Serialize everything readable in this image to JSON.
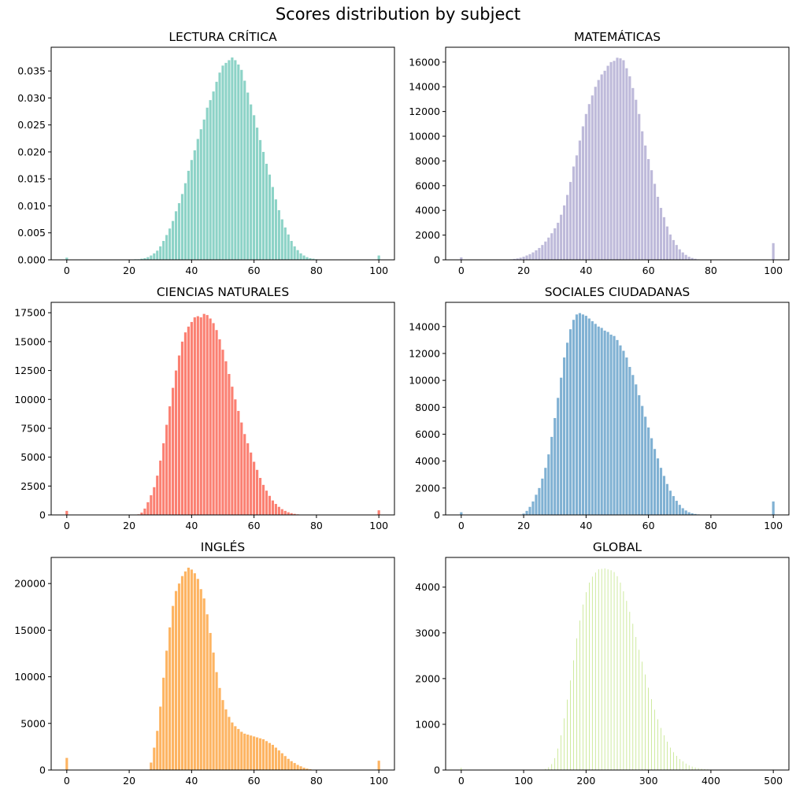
{
  "figure": {
    "suptitle": "Scores distribution by subject"
  },
  "chart_data": [
    {
      "type": "bar",
      "title": "LECTURA CRÍTICA",
      "color": "#8dd3c7",
      "xlim": [
        -5,
        105
      ],
      "ylim": [
        0,
        0.0394
      ],
      "xticks": [
        0,
        20,
        40,
        60,
        80,
        100
      ],
      "yticks": [
        0.0,
        0.005,
        0.01,
        0.015,
        0.02,
        0.025,
        0.03,
        0.035
      ],
      "ytick_labels": [
        "0.000",
        "0.005",
        "0.010",
        "0.015",
        "0.020",
        "0.025",
        "0.030",
        "0.035"
      ],
      "bar_width": 0.8,
      "x": [
        0,
        21,
        22,
        23,
        24,
        25,
        26,
        27,
        28,
        29,
        30,
        31,
        32,
        33,
        34,
        35,
        36,
        37,
        38,
        39,
        40,
        41,
        42,
        43,
        44,
        45,
        46,
        47,
        48,
        49,
        50,
        51,
        52,
        53,
        54,
        55,
        56,
        57,
        58,
        59,
        60,
        61,
        62,
        63,
        64,
        65,
        66,
        67,
        68,
        69,
        70,
        71,
        72,
        73,
        74,
        75,
        76,
        77,
        78,
        79,
        80,
        81,
        82,
        100
      ],
      "values": [
        0.0004,
        0.0,
        0.0001,
        0.0001,
        0.0002,
        0.0003,
        0.0005,
        0.0008,
        0.0012,
        0.0017,
        0.0025,
        0.0035,
        0.0046,
        0.0058,
        0.0072,
        0.009,
        0.0105,
        0.0122,
        0.0142,
        0.0165,
        0.0185,
        0.0203,
        0.0224,
        0.0242,
        0.026,
        0.0282,
        0.0296,
        0.0312,
        0.033,
        0.0347,
        0.036,
        0.0365,
        0.037,
        0.0375,
        0.037,
        0.0362,
        0.0352,
        0.0332,
        0.031,
        0.0288,
        0.0268,
        0.0245,
        0.0222,
        0.02,
        0.0178,
        0.0158,
        0.0135,
        0.0112,
        0.0092,
        0.0075,
        0.006,
        0.0047,
        0.0035,
        0.0025,
        0.0018,
        0.0012,
        0.0008,
        0.0005,
        0.0003,
        0.0002,
        0.0001,
        0.0,
        0.0,
        0.0008
      ]
    },
    {
      "type": "bar",
      "title": "MATEMÁTICAS",
      "color": "#bebada",
      "xlim": [
        -5,
        105
      ],
      "ylim": [
        0,
        17200
      ],
      "xticks": [
        0,
        20,
        40,
        60,
        80,
        100
      ],
      "yticks": [
        0,
        2000,
        4000,
        6000,
        8000,
        10000,
        12000,
        14000,
        16000
      ],
      "ytick_labels": [
        "0",
        "2000",
        "4000",
        "6000",
        "8000",
        "10000",
        "12000",
        "14000",
        "16000"
      ],
      "bar_width": 0.8,
      "x": [
        0,
        15,
        16,
        17,
        18,
        19,
        20,
        21,
        22,
        23,
        24,
        25,
        26,
        27,
        28,
        29,
        30,
        31,
        32,
        33,
        34,
        35,
        36,
        37,
        38,
        39,
        40,
        41,
        42,
        43,
        44,
        45,
        46,
        47,
        48,
        49,
        50,
        51,
        52,
        53,
        54,
        55,
        56,
        57,
        58,
        59,
        60,
        61,
        62,
        63,
        64,
        65,
        66,
        67,
        68,
        69,
        70,
        71,
        72,
        73,
        74,
        75,
        76,
        77,
        78,
        79,
        80,
        81,
        82,
        83,
        84,
        100
      ],
      "values": [
        200,
        20,
        40,
        70,
        110,
        170,
        250,
        350,
        460,
        600,
        770,
        960,
        1200,
        1480,
        1800,
        2150,
        2550,
        3000,
        3650,
        4400,
        5250,
        6300,
        7550,
        8450,
        9650,
        10800,
        11800,
        12600,
        13300,
        14000,
        14550,
        15000,
        15300,
        15700,
        16000,
        16100,
        16350,
        16300,
        16150,
        15500,
        14850,
        13900,
        12950,
        11800,
        10400,
        9250,
        8150,
        7250,
        6150,
        5100,
        4200,
        3450,
        2700,
        2050,
        1600,
        1200,
        850,
        600,
        400,
        250,
        150,
        80,
        40,
        20,
        10,
        5,
        2,
        1,
        0,
        0,
        0,
        1350
      ]
    },
    {
      "type": "bar",
      "title": "CIENCIAS NATURALES",
      "color": "#fb8072",
      "xlim": [
        -5,
        105
      ],
      "ylim": [
        0,
        18400
      ],
      "xticks": [
        0,
        20,
        40,
        60,
        80,
        100
      ],
      "yticks": [
        0,
        2500,
        5000,
        7500,
        10000,
        12500,
        15000,
        17500
      ],
      "ytick_labels": [
        "0",
        "2500",
        "5000",
        "7500",
        "10000",
        "12500",
        "15000",
        "17500"
      ],
      "bar_width": 0.8,
      "x": [
        0,
        23,
        24,
        25,
        26,
        27,
        28,
        29,
        30,
        31,
        32,
        33,
        34,
        35,
        36,
        37,
        38,
        39,
        40,
        41,
        42,
        43,
        44,
        45,
        46,
        47,
        48,
        49,
        50,
        51,
        52,
        53,
        54,
        55,
        56,
        57,
        58,
        59,
        60,
        61,
        62,
        63,
        64,
        65,
        66,
        67,
        68,
        69,
        70,
        71,
        72,
        73,
        74,
        75,
        76,
        77,
        78,
        79,
        80,
        81,
        82,
        100
      ],
      "values": [
        350,
        50,
        200,
        550,
        1100,
        1700,
        2400,
        3400,
        4700,
        6200,
        7800,
        9400,
        11000,
        12500,
        13800,
        15000,
        15800,
        16300,
        16700,
        17100,
        17200,
        17100,
        17400,
        17300,
        17000,
        16600,
        16000,
        15200,
        14300,
        13300,
        12200,
        11100,
        10000,
        9000,
        8000,
        7000,
        6200,
        5400,
        4600,
        3900,
        3200,
        2600,
        2100,
        1650,
        1250,
        950,
        700,
        500,
        350,
        230,
        150,
        90,
        50,
        30,
        20,
        10,
        5,
        2,
        0,
        0,
        0,
        400
      ]
    },
    {
      "type": "bar",
      "title": "SOCIALES CIUDADANAS",
      "color": "#80b1d3",
      "xlim": [
        -5,
        105
      ],
      "ylim": [
        0,
        15800
      ],
      "xticks": [
        0,
        20,
        40,
        60,
        80,
        100
      ],
      "yticks": [
        0,
        2000,
        4000,
        6000,
        8000,
        10000,
        12000,
        14000
      ],
      "ytick_labels": [
        "0",
        "2000",
        "4000",
        "6000",
        "8000",
        "10000",
        "12000",
        "14000"
      ],
      "bar_width": 0.8,
      "x": [
        0,
        20,
        21,
        22,
        23,
        24,
        25,
        26,
        27,
        28,
        29,
        30,
        31,
        32,
        33,
        34,
        35,
        36,
        37,
        38,
        39,
        40,
        41,
        42,
        43,
        44,
        45,
        46,
        47,
        48,
        49,
        50,
        51,
        52,
        53,
        54,
        55,
        56,
        57,
        58,
        59,
        60,
        61,
        62,
        63,
        64,
        65,
        66,
        67,
        68,
        69,
        70,
        71,
        72,
        73,
        74,
        75,
        76,
        77,
        78,
        79,
        80,
        81,
        82,
        100
      ],
      "values": [
        200,
        100,
        300,
        600,
        1000,
        1500,
        2000,
        2700,
        3500,
        4500,
        5800,
        7200,
        8700,
        10200,
        11700,
        12800,
        13800,
        14500,
        14900,
        15000,
        14900,
        14800,
        14600,
        14400,
        14200,
        14000,
        13900,
        13700,
        13600,
        13400,
        13300,
        13000,
        12600,
        12200,
        11700,
        11000,
        10400,
        9700,
        8900,
        8100,
        7300,
        6500,
        5700,
        4900,
        4200,
        3500,
        2900,
        2300,
        1800,
        1400,
        1050,
        750,
        500,
        330,
        200,
        120,
        70,
        40,
        20,
        10,
        5,
        2,
        0,
        0,
        1000
      ]
    },
    {
      "type": "bar",
      "title": "INGLÉS",
      "color": "#fdb462",
      "xlim": [
        -5,
        105
      ],
      "ylim": [
        0,
        22800
      ],
      "xticks": [
        0,
        20,
        40,
        60,
        80,
        100
      ],
      "yticks": [
        0,
        5000,
        10000,
        15000,
        20000
      ],
      "ytick_labels": [
        "0",
        "5000",
        "10000",
        "15000",
        "20000"
      ],
      "bar_width": 0.8,
      "x": [
        0,
        27,
        28,
        29,
        30,
        31,
        32,
        33,
        34,
        35,
        36,
        37,
        38,
        39,
        40,
        41,
        42,
        43,
        44,
        45,
        46,
        47,
        48,
        49,
        50,
        51,
        52,
        53,
        54,
        55,
        56,
        57,
        58,
        59,
        60,
        61,
        62,
        63,
        64,
        65,
        66,
        67,
        68,
        69,
        70,
        71,
        72,
        73,
        74,
        75,
        76,
        77,
        78,
        79,
        80,
        81,
        82,
        83,
        84,
        85,
        86,
        87,
        100
      ],
      "values": [
        1300,
        800,
        2400,
        4200,
        6800,
        9900,
        12800,
        15300,
        17600,
        19200,
        20000,
        20800,
        21300,
        21700,
        21500,
        21100,
        20500,
        19400,
        18400,
        16700,
        14700,
        12600,
        10500,
        8800,
        7500,
        6500,
        5700,
        5100,
        4700,
        4400,
        4100,
        3900,
        3800,
        3700,
        3600,
        3500,
        3400,
        3300,
        3100,
        2900,
        2700,
        2400,
        2100,
        1800,
        1500,
        1200,
        950,
        750,
        550,
        400,
        250,
        150,
        80,
        40,
        20,
        10,
        5,
        2,
        1,
        0,
        0,
        0,
        1000
      ]
    },
    {
      "type": "bar",
      "title": "GLOBAL",
      "color": "#b3de69",
      "xlim": [
        -25,
        525
      ],
      "ylim": [
        0,
        4650
      ],
      "xticks": [
        0,
        100,
        200,
        300,
        400,
        500
      ],
      "yticks": [
        0,
        1000,
        2000,
        3000,
        4000
      ],
      "ytick_labels": [
        "0",
        "1000",
        "2000",
        "3000",
        "4000"
      ],
      "bar_width": 0.8,
      "x": [
        0,
        125,
        130,
        135,
        140,
        145,
        150,
        155,
        160,
        165,
        170,
        175,
        180,
        185,
        190,
        195,
        200,
        205,
        210,
        215,
        220,
        225,
        230,
        235,
        240,
        245,
        250,
        255,
        260,
        265,
        270,
        275,
        280,
        285,
        290,
        295,
        300,
        305,
        310,
        315,
        320,
        325,
        330,
        335,
        340,
        345,
        350,
        355,
        360,
        365,
        370,
        375,
        380,
        385,
        390,
        395,
        400,
        405,
        410,
        415,
        420,
        425,
        430,
        435,
        440,
        445,
        450,
        500
      ],
      "values": [
        50,
        2,
        8,
        25,
        60,
        130,
        260,
        470,
        760,
        1130,
        1540,
        1960,
        2400,
        2880,
        3270,
        3620,
        3890,
        4100,
        4230,
        4320,
        4390,
        4400,
        4410,
        4390,
        4370,
        4330,
        4240,
        4100,
        3910,
        3700,
        3460,
        3200,
        2910,
        2630,
        2370,
        2090,
        1800,
        1550,
        1320,
        1110,
        920,
        760,
        620,
        490,
        390,
        310,
        240,
        190,
        140,
        100,
        75,
        55,
        40,
        28,
        20,
        14,
        10,
        7,
        5,
        3,
        2,
        1,
        1,
        0,
        0,
        0,
        0,
        10
      ]
    }
  ]
}
